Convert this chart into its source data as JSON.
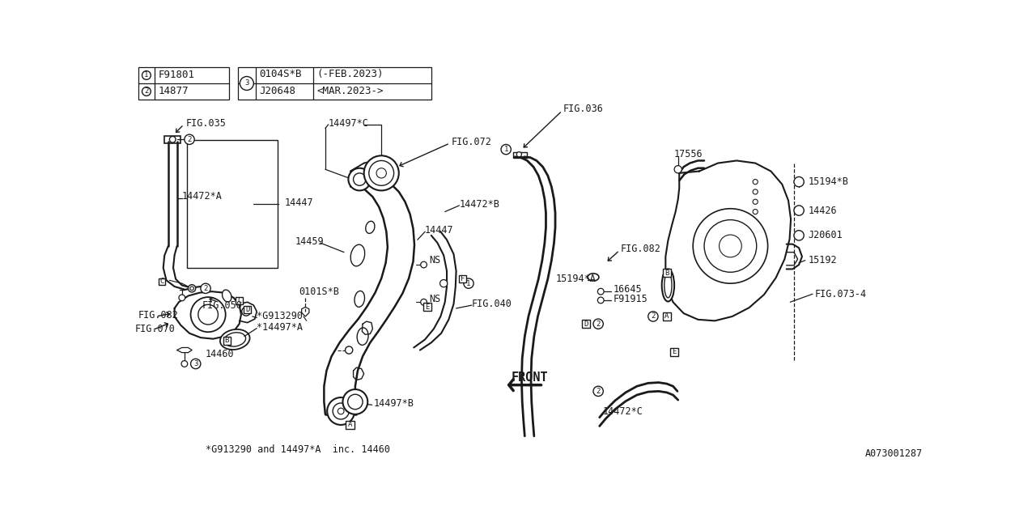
{
  "bg": "#ffffff",
  "lc": "#1a1a1a",
  "fig_id": "A073001287",
  "legend1": [
    [
      "1",
      "F91801"
    ],
    [
      "2",
      "14877"
    ]
  ],
  "legend2": [
    [
      "3",
      "0104S*B",
      "(-FEB.2023)"
    ],
    [
      "3",
      "J20648",
      "<MAR.2023->"
    ]
  ],
  "note": "*G913290 and 14497*A  inc. 14460"
}
